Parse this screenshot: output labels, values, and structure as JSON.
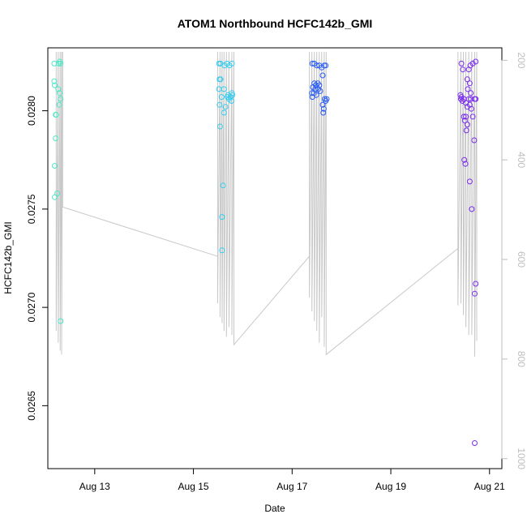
{
  "chart_data": {
    "type": "scatter",
    "title": "ATOM1 Northbound HCFC142b_GMI",
    "xlabel": "Date",
    "ylabel": "HCFC142b_GMI",
    "x_unit": "days in August",
    "xlim": [
      12.05,
      21.25
    ],
    "ylim": [
      0.02618,
      0.02832
    ],
    "y2lim": [
      1020,
      175
    ],
    "xticks": [
      {
        "value": 13,
        "label": "Aug 13"
      },
      {
        "value": 15,
        "label": "Aug 15"
      },
      {
        "value": 17,
        "label": "Aug 17"
      },
      {
        "value": 19,
        "label": "Aug 19"
      },
      {
        "value": 21,
        "label": "Aug 21"
      }
    ],
    "yticks": [
      0.0265,
      0.027,
      0.0275,
      0.028
    ],
    "y2ticks": [
      200,
      400,
      600,
      800,
      1000
    ],
    "grid": false,
    "legend": "none",
    "colors": {
      "axis": "#000000",
      "profile": "#c8c8c8",
      "right_axis": "#bebebe"
    },
    "series": [
      {
        "values": [
          [
            12.18,
            0.02824,
            "#4de8c8"
          ],
          [
            12.18,
            0.02815,
            "#4de8c8"
          ],
          [
            12.19,
            0.02813,
            "#4de8c8"
          ],
          [
            12.21,
            0.02798,
            "#4de8c8"
          ],
          [
            12.22,
            0.02798,
            "#4de8c8"
          ],
          [
            12.21,
            0.02786,
            "#4de8c8"
          ],
          [
            12.19,
            0.02772,
            "#4de8c8"
          ],
          [
            12.19,
            0.02756,
            "#4de8c8"
          ],
          [
            12.24,
            0.02758,
            "#4de8c8"
          ],
          [
            12.27,
            0.02824,
            "#4de8c8"
          ],
          [
            12.29,
            0.02825,
            "#4de8c8"
          ],
          [
            12.31,
            0.02824,
            "#4de8c8"
          ],
          [
            12.26,
            0.02811,
            "#4de8c8"
          ],
          [
            12.29,
            0.02809,
            "#4de8c8"
          ],
          [
            12.28,
            0.02803,
            "#4de8c8"
          ],
          [
            12.31,
            0.02806,
            "#4de8c8"
          ],
          [
            12.31,
            0.02693,
            "#4de8c8"
          ]
        ]
      },
      {
        "values": [
          [
            15.52,
            0.02824,
            "#33ccf0"
          ],
          [
            15.55,
            0.02824,
            "#33ccf0"
          ],
          [
            15.63,
            0.02823,
            "#33ccf0"
          ],
          [
            15.68,
            0.02824,
            "#33ccf0"
          ],
          [
            15.73,
            0.02823,
            "#33ccf0"
          ],
          [
            15.78,
            0.02824,
            "#33ccf0"
          ],
          [
            15.53,
            0.02816,
            "#33ccf0"
          ],
          [
            15.55,
            0.02816,
            "#33ccf0"
          ],
          [
            15.52,
            0.02811,
            "#33ccf0"
          ],
          [
            15.62,
            0.02811,
            "#33ccf0"
          ],
          [
            15.57,
            0.02807,
            "#33ccf0"
          ],
          [
            15.53,
            0.02803,
            "#33ccf0"
          ],
          [
            15.65,
            0.02802,
            "#33ccf0"
          ],
          [
            15.62,
            0.02799,
            "#33ccf0"
          ],
          [
            15.69,
            0.02807,
            "#33ccf0"
          ],
          [
            15.72,
            0.02806,
            "#33ccf0"
          ],
          [
            15.75,
            0.02807,
            "#33ccf0"
          ],
          [
            15.78,
            0.02809,
            "#33ccf0"
          ],
          [
            15.79,
            0.02808,
            "#33ccf0"
          ],
          [
            15.7,
            0.02808,
            "#33ccf0"
          ],
          [
            15.77,
            0.02805,
            "#33ccf0"
          ],
          [
            15.54,
            0.02792,
            "#33ccf0"
          ],
          [
            15.6,
            0.02762,
            "#33ccf0"
          ],
          [
            15.58,
            0.02746,
            "#33ccf0"
          ],
          [
            15.58,
            0.02729,
            "#33ccf0"
          ]
        ]
      },
      {
        "values": [
          [
            17.41,
            0.02824,
            "#2a5cf2"
          ],
          [
            17.45,
            0.02824,
            "#2a5cf2"
          ],
          [
            17.5,
            0.02823,
            "#2a5cf2"
          ],
          [
            17.55,
            0.02823,
            "#2a5cf2"
          ],
          [
            17.6,
            0.02822,
            "#2a5cf2"
          ],
          [
            17.65,
            0.02823,
            "#2a5cf2"
          ],
          [
            17.68,
            0.02823,
            "#2a5cf2"
          ],
          [
            17.62,
            0.02818,
            "#2a5cf2"
          ],
          [
            17.45,
            0.02814,
            "#2a5cf2"
          ],
          [
            17.48,
            0.02813,
            "#2a5cf2"
          ],
          [
            17.52,
            0.02814,
            "#2a5cf2"
          ],
          [
            17.55,
            0.02813,
            "#2a5cf2"
          ],
          [
            17.42,
            0.02812,
            "#2a5cf2"
          ],
          [
            17.47,
            0.02811,
            "#2a5cf2"
          ],
          [
            17.53,
            0.02811,
            "#2a5cf2"
          ],
          [
            17.57,
            0.0281,
            "#2a5cf2"
          ],
          [
            17.4,
            0.02809,
            "#2a5cf2"
          ],
          [
            17.44,
            0.02809,
            "#2a5cf2"
          ],
          [
            17.49,
            0.02808,
            "#2a5cf2"
          ],
          [
            17.41,
            0.02807,
            "#2a5cf2"
          ],
          [
            17.66,
            0.02806,
            "#2a5cf2"
          ],
          [
            17.68,
            0.02805,
            "#2a5cf2"
          ],
          [
            17.7,
            0.02806,
            "#2a5cf2"
          ],
          [
            17.62,
            0.02803,
            "#2a5cf2"
          ],
          [
            17.64,
            0.02801,
            "#2a5cf2"
          ],
          [
            17.63,
            0.02799,
            "#2a5cf2"
          ]
        ]
      },
      {
        "values": [
          [
            20.43,
            0.02824,
            "#7a2cf0"
          ],
          [
            20.46,
            0.02821,
            "#7a2cf0"
          ],
          [
            20.61,
            0.02823,
            "#7a2cf0"
          ],
          [
            20.66,
            0.02824,
            "#7a2cf0"
          ],
          [
            20.72,
            0.02825,
            "#7a2cf0"
          ],
          [
            20.58,
            0.02821,
            "#7a2cf0"
          ],
          [
            20.55,
            0.02816,
            "#7a2cf0"
          ],
          [
            20.6,
            0.02814,
            "#7a2cf0"
          ],
          [
            20.56,
            0.02811,
            "#7a2cf0"
          ],
          [
            20.62,
            0.02809,
            "#7a2cf0"
          ],
          [
            20.41,
            0.02808,
            "#7a2cf0"
          ],
          [
            20.43,
            0.02807,
            "#7a2cf0"
          ],
          [
            20.42,
            0.02806,
            "#7a2cf0"
          ],
          [
            20.45,
            0.02805,
            "#7a2cf0"
          ],
          [
            20.48,
            0.02806,
            "#7a2cf0"
          ],
          [
            20.58,
            0.02806,
            "#7a2cf0"
          ],
          [
            20.62,
            0.02806,
            "#7a2cf0"
          ],
          [
            20.7,
            0.02806,
            "#7a2cf0"
          ],
          [
            20.72,
            0.02806,
            "#7a2cf0"
          ],
          [
            20.52,
            0.02804,
            "#7a2cf0"
          ],
          [
            20.55,
            0.02802,
            "#7a2cf0"
          ],
          [
            20.6,
            0.02803,
            "#7a2cf0"
          ],
          [
            20.63,
            0.02801,
            "#7a2cf0"
          ],
          [
            20.52,
            0.02797,
            "#7a2cf0"
          ],
          [
            20.48,
            0.02797,
            "#7a2cf0"
          ],
          [
            20.66,
            0.02797,
            "#7a2cf0"
          ],
          [
            20.5,
            0.02795,
            "#7a2cf0"
          ],
          [
            20.55,
            0.02793,
            "#7a2cf0"
          ],
          [
            20.53,
            0.0279,
            "#7a2cf0"
          ],
          [
            20.69,
            0.02785,
            "#7a2cf0"
          ],
          [
            20.49,
            0.02775,
            "#7a2cf0"
          ],
          [
            20.51,
            0.02773,
            "#7a2cf0"
          ],
          [
            20.6,
            0.02764,
            "#7a2cf0"
          ],
          [
            20.64,
            0.0275,
            "#7a2cf0"
          ],
          [
            20.72,
            0.02712,
            "#7a2cf0"
          ],
          [
            20.7,
            0.02707,
            "#7a2cf0"
          ],
          [
            20.7,
            0.02631,
            "#7a2cf0"
          ]
        ]
      }
    ],
    "profile_line": [
      [
        12.22,
        0.0283
      ],
      [
        12.22,
        0.02688
      ],
      [
        12.26,
        0.0283
      ],
      [
        12.26,
        0.02682
      ],
      [
        12.3,
        0.0283
      ],
      [
        12.3,
        0.02678
      ],
      [
        12.33,
        0.0283
      ],
      [
        12.33,
        0.02676
      ],
      [
        12.35,
        0.0283
      ],
      [
        12.35,
        0.02751
      ],
      [
        15.49,
        0.02726
      ],
      [
        15.49,
        0.0283
      ],
      [
        15.49,
        0.02702
      ],
      [
        15.54,
        0.0283
      ],
      [
        15.54,
        0.02695
      ],
      [
        15.58,
        0.0283
      ],
      [
        15.58,
        0.02692
      ],
      [
        15.62,
        0.0283
      ],
      [
        15.62,
        0.02688
      ],
      [
        15.67,
        0.0283
      ],
      [
        15.67,
        0.02685
      ],
      [
        15.72,
        0.0283
      ],
      [
        15.72,
        0.0269
      ],
      [
        15.78,
        0.0283
      ],
      [
        15.78,
        0.02686
      ],
      [
        15.82,
        0.0283
      ],
      [
        15.82,
        0.02681
      ],
      [
        17.35,
        0.02726
      ],
      [
        17.35,
        0.0283
      ],
      [
        17.35,
        0.02705
      ],
      [
        17.4,
        0.0283
      ],
      [
        17.4,
        0.02698
      ],
      [
        17.45,
        0.0283
      ],
      [
        17.45,
        0.02693
      ],
      [
        17.5,
        0.0283
      ],
      [
        17.5,
        0.02688
      ],
      [
        17.55,
        0.0283
      ],
      [
        17.55,
        0.02682
      ],
      [
        17.6,
        0.0283
      ],
      [
        17.6,
        0.02695
      ],
      [
        17.65,
        0.0283
      ],
      [
        17.65,
        0.0268
      ],
      [
        17.69,
        0.0283
      ],
      [
        17.69,
        0.02676
      ],
      [
        20.36,
        0.0273
      ],
      [
        20.36,
        0.0283
      ],
      [
        20.36,
        0.02701
      ],
      [
        20.42,
        0.0283
      ],
      [
        20.42,
        0.02702
      ],
      [
        20.47,
        0.0283
      ],
      [
        20.47,
        0.02696
      ],
      [
        20.52,
        0.0283
      ],
      [
        20.52,
        0.0269
      ],
      [
        20.58,
        0.0283
      ],
      [
        20.58,
        0.02686
      ],
      [
        20.64,
        0.0283
      ],
      [
        20.64,
        0.02686
      ],
      [
        20.7,
        0.0283
      ],
      [
        20.7,
        0.02675
      ],
      [
        20.74,
        0.0283
      ],
      [
        20.74,
        0.02683
      ]
    ]
  }
}
